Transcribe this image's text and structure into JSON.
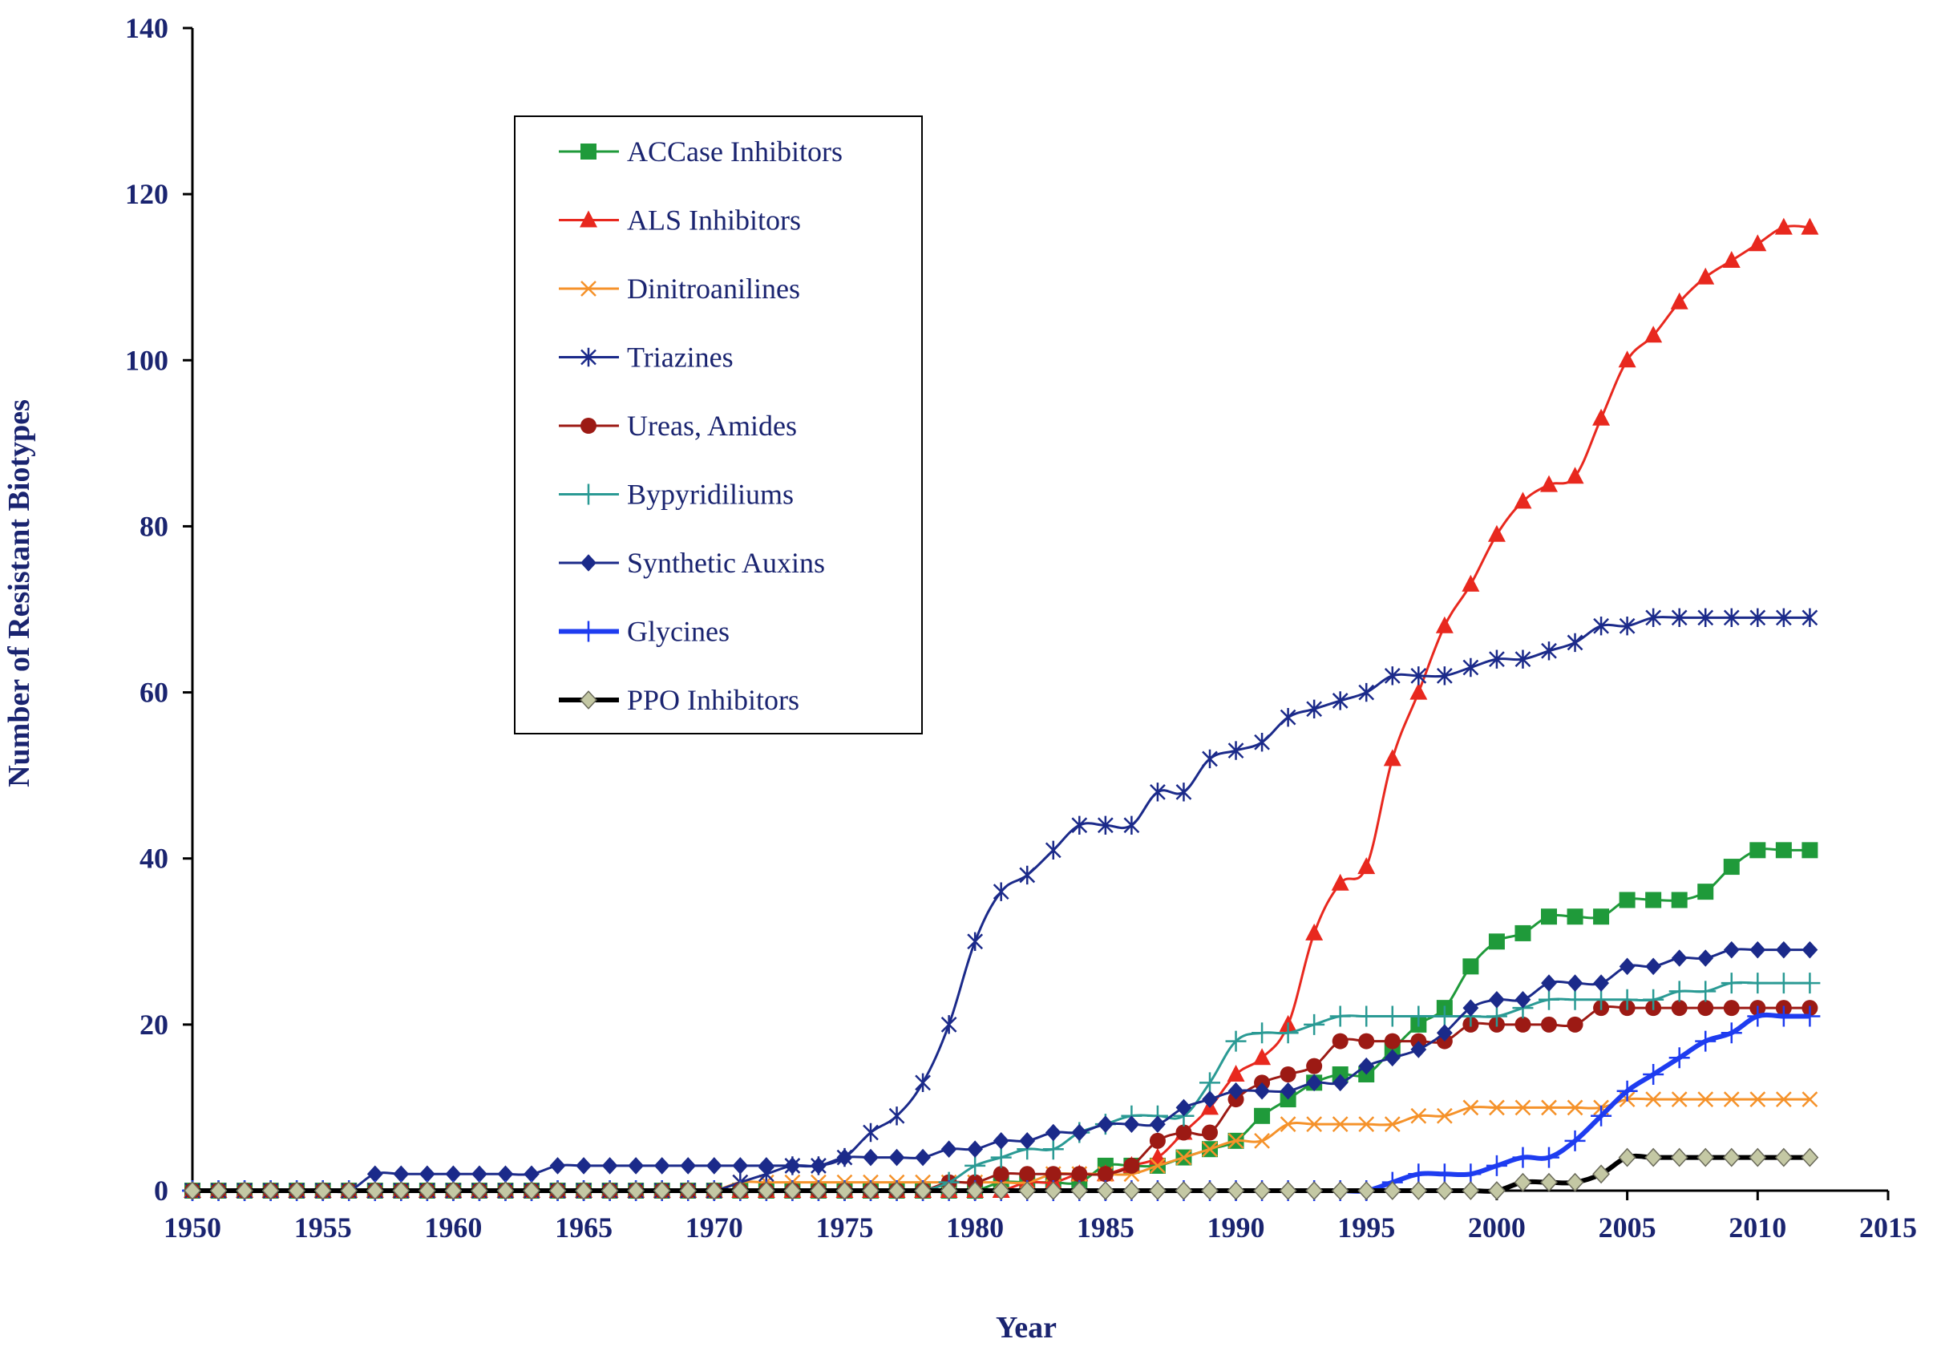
{
  "chart_data": {
    "type": "line",
    "title": "",
    "xlabel": "Year",
    "ylabel": "Number of Resistant Biotypes",
    "xlim": [
      1950,
      2015
    ],
    "ylim": [
      0,
      140
    ],
    "x_ticks": [
      1950,
      1955,
      1960,
      1965,
      1970,
      1975,
      1980,
      1985,
      1990,
      1995,
      2000,
      2005,
      2010,
      2015
    ],
    "y_ticks": [
      0,
      20,
      40,
      60,
      80,
      100,
      120,
      140
    ],
    "grid": false,
    "legend_position": "top-left, inside plot",
    "x": [
      1950,
      1951,
      1952,
      1953,
      1954,
      1955,
      1956,
      1957,
      1958,
      1959,
      1960,
      1961,
      1962,
      1963,
      1964,
      1965,
      1966,
      1967,
      1968,
      1969,
      1970,
      1971,
      1972,
      1973,
      1974,
      1975,
      1976,
      1977,
      1978,
      1979,
      1980,
      1981,
      1982,
      1983,
      1984,
      1985,
      1986,
      1987,
      1988,
      1989,
      1990,
      1991,
      1992,
      1993,
      1994,
      1995,
      1996,
      1997,
      1998,
      1999,
      2000,
      2001,
      2002,
      2003,
      2004,
      2005,
      2006,
      2007,
      2008,
      2009,
      2010,
      2011,
      2012
    ],
    "series": [
      {
        "name": "ACCase Inhibitors",
        "color": "#1f9a3a",
        "marker": "square",
        "values": [
          0,
          0,
          0,
          0,
          0,
          0,
          0,
          0,
          0,
          0,
          0,
          0,
          0,
          0,
          0,
          0,
          0,
          0,
          0,
          0,
          0,
          0,
          0,
          0,
          0,
          0,
          0,
          0,
          0,
          0,
          0,
          1,
          1,
          1,
          1,
          3,
          3,
          3,
          4,
          5,
          6,
          9,
          11,
          13,
          14,
          14,
          17,
          20,
          22,
          27,
          30,
          31,
          33,
          33,
          33,
          35,
          35,
          35,
          36,
          39,
          41,
          41,
          41
        ]
      },
      {
        "name": "ALS Inhibitors",
        "color": "#e8281e",
        "marker": "triangle",
        "values": [
          0,
          0,
          0,
          0,
          0,
          0,
          0,
          0,
          0,
          0,
          0,
          0,
          0,
          0,
          0,
          0,
          0,
          0,
          0,
          0,
          0,
          0,
          0,
          0,
          0,
          0,
          0,
          0,
          0,
          0,
          0,
          0,
          1,
          1,
          2,
          2,
          3,
          4,
          7,
          10,
          14,
          16,
          20,
          31,
          37,
          39,
          52,
          60,
          68,
          73,
          79,
          83,
          85,
          86,
          93,
          100,
          103,
          107,
          110,
          112,
          114,
          116,
          116
        ]
      },
      {
        "name": "Dinitroanilines",
        "color": "#f5922a",
        "marker": "x",
        "values": [
          0,
          0,
          0,
          0,
          0,
          0,
          0,
          0,
          0,
          0,
          0,
          0,
          0,
          0,
          0,
          0,
          0,
          0,
          0,
          0,
          0,
          1,
          1,
          1,
          1,
          1,
          1,
          1,
          1,
          1,
          1,
          1,
          1,
          2,
          2,
          2,
          2,
          3,
          4,
          5,
          6,
          6,
          8,
          8,
          8,
          8,
          8,
          9,
          9,
          10,
          10,
          10,
          10,
          10,
          10,
          11,
          11,
          11,
          11,
          11,
          11,
          11,
          11
        ]
      },
      {
        "name": "Triazines",
        "color": "#1b2a8a",
        "marker": "asterisk",
        "values": [
          0,
          0,
          0,
          0,
          0,
          0,
          0,
          0,
          0,
          0,
          0,
          0,
          0,
          0,
          0,
          0,
          0,
          0,
          0,
          0,
          0,
          1,
          2,
          3,
          3,
          4,
          7,
          9,
          13,
          20,
          30,
          36,
          38,
          41,
          44,
          44,
          44,
          48,
          48,
          52,
          53,
          54,
          57,
          58,
          59,
          60,
          62,
          62,
          62,
          63,
          64,
          64,
          65,
          66,
          68,
          68,
          69,
          69,
          69,
          69,
          69,
          69,
          69
        ]
      },
      {
        "name": "Ureas, Amides",
        "color": "#9c1a14",
        "marker": "circle",
        "values": [
          0,
          0,
          0,
          0,
          0,
          0,
          0,
          0,
          0,
          0,
          0,
          0,
          0,
          0,
          0,
          0,
          0,
          0,
          0,
          0,
          0,
          0,
          0,
          0,
          0,
          0,
          0,
          0,
          0,
          1,
          1,
          2,
          2,
          2,
          2,
          2,
          3,
          6,
          7,
          7,
          11,
          13,
          14,
          15,
          18,
          18,
          18,
          18,
          18,
          20,
          20,
          20,
          20,
          20,
          22,
          22,
          22,
          22,
          22,
          22,
          22,
          22,
          22
        ]
      },
      {
        "name": "Bypyridiliums",
        "color": "#2a9a94",
        "marker": "plus",
        "values": [
          0,
          0,
          0,
          0,
          0,
          0,
          0,
          0,
          0,
          0,
          0,
          0,
          0,
          0,
          0,
          0,
          0,
          0,
          0,
          0,
          0,
          0,
          0,
          0,
          0,
          0,
          0,
          0,
          0,
          1,
          3,
          4,
          5,
          5,
          7,
          8,
          9,
          9,
          9,
          13,
          18,
          19,
          19,
          20,
          21,
          21,
          21,
          21,
          21,
          21,
          21,
          22,
          23,
          23,
          23,
          23,
          23,
          24,
          24,
          25,
          25,
          25,
          25
        ]
      },
      {
        "name": "Synthetic Auxins",
        "color": "#1b2a8a",
        "marker": "diamond",
        "values": [
          0,
          0,
          0,
          0,
          0,
          0,
          0,
          2,
          2,
          2,
          2,
          2,
          2,
          2,
          3,
          3,
          3,
          3,
          3,
          3,
          3,
          3,
          3,
          3,
          3,
          4,
          4,
          4,
          4,
          5,
          5,
          6,
          6,
          7,
          7,
          8,
          8,
          8,
          10,
          11,
          12,
          12,
          12,
          13,
          13,
          15,
          16,
          17,
          19,
          22,
          23,
          23,
          25,
          25,
          25,
          27,
          27,
          28,
          28,
          29,
          29,
          29,
          29
        ]
      },
      {
        "name": "Glycines",
        "color": "#1e3cf0",
        "marker": "plus",
        "thick": true,
        "values": [
          0,
          0,
          0,
          0,
          0,
          0,
          0,
          0,
          0,
          0,
          0,
          0,
          0,
          0,
          0,
          0,
          0,
          0,
          0,
          0,
          0,
          0,
          0,
          0,
          0,
          0,
          0,
          0,
          0,
          0,
          0,
          0,
          0,
          0,
          0,
          0,
          0,
          0,
          0,
          0,
          0,
          0,
          0,
          0,
          0,
          0,
          1,
          2,
          2,
          2,
          3,
          4,
          4,
          6,
          9,
          12,
          14,
          16,
          18,
          19,
          21,
          21,
          21
        ]
      },
      {
        "name": "PPO Inhibitors",
        "color": "#000000",
        "marker": "diamond",
        "marker_fill": "#c4c8a4",
        "thick": true,
        "values": [
          0,
          0,
          0,
          0,
          0,
          0,
          0,
          0,
          0,
          0,
          0,
          0,
          0,
          0,
          0,
          0,
          0,
          0,
          0,
          0,
          0,
          0,
          0,
          0,
          0,
          0,
          0,
          0,
          0,
          0,
          0,
          0,
          0,
          0,
          0,
          0,
          0,
          0,
          0,
          0,
          0,
          0,
          0,
          0,
          0,
          0,
          0,
          0,
          0,
          0,
          0,
          1,
          1,
          1,
          2,
          4,
          4,
          4,
          4,
          4,
          4,
          4,
          4
        ]
      }
    ]
  }
}
